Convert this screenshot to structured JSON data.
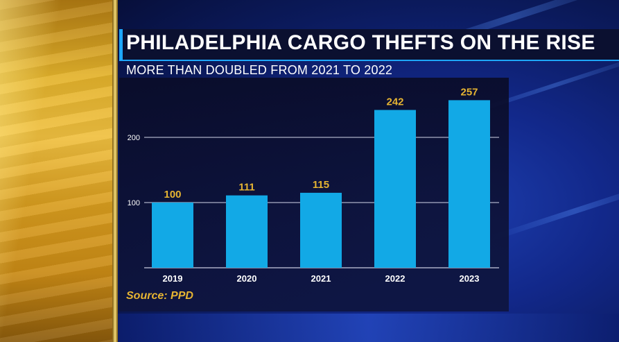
{
  "title": "PHILADELPHIA CARGO THEFTS ON THE RISE",
  "subtitle": "MORE THAN DOUBLED FROM 2021 TO 2022",
  "source": "Source: PPD",
  "colors": {
    "bar": "#12a9e6",
    "value_label": "#e6b432",
    "axis_text": "#ffffff",
    "gridline": "#c8cbe0",
    "accent": "#1ea7ff"
  },
  "chart_data": {
    "type": "bar",
    "title": "PHILADELPHIA CARGO THEFTS ON THE RISE",
    "subtitle": "MORE THAN DOUBLED FROM 2021 TO 2022",
    "xlabel": "",
    "ylabel": "",
    "categories": [
      "2019",
      "2020",
      "2021",
      "2022",
      "2023"
    ],
    "values": [
      100,
      111,
      115,
      242,
      257
    ],
    "data_labels": [
      "100",
      "111",
      "115",
      "242",
      "257"
    ],
    "yticks": [
      100,
      200
    ],
    "ytick_labels": [
      "100",
      "200"
    ],
    "ylim": [
      0,
      270
    ],
    "grid": true,
    "legend": "none"
  }
}
